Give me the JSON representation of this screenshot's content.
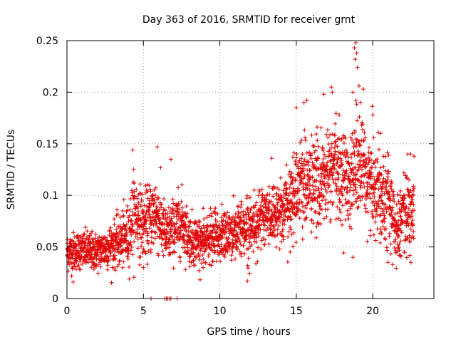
{
  "chart_data": {
    "type": "scatter",
    "title": "Day 363 of 2016, SRMTID for receiver grnt",
    "xlabel": "GPS time / hours",
    "ylabel": "SRMTID / TECUs",
    "xlim": [
      0,
      24
    ],
    "ylim": [
      0,
      0.25
    ],
    "x_ticks": [
      0,
      5,
      10,
      15,
      20
    ],
    "x_tick_labels": [
      "0",
      "5",
      "10",
      "15",
      "20"
    ],
    "y_ticks": [
      0,
      0.05,
      0.1,
      0.15,
      0.2,
      0.25
    ],
    "y_tick_labels": [
      "0",
      "0.05",
      "0.1",
      "0.15",
      "0.2",
      "0.25"
    ],
    "grid": true,
    "marker": "+",
    "color": "#e00000",
    "series": [
      {
        "name": "SRMTID",
        "sampling": "every 30 s from 0.0 to 22.7 h",
        "trend_envelope": [
          {
            "x": 0.0,
            "y": 0.045,
            "spread": 0.012
          },
          {
            "x": 1.0,
            "y": 0.047,
            "spread": 0.012
          },
          {
            "x": 2.0,
            "y": 0.045,
            "spread": 0.012
          },
          {
            "x": 3.0,
            "y": 0.052,
            "spread": 0.014
          },
          {
            "x": 4.0,
            "y": 0.06,
            "spread": 0.02
          },
          {
            "x": 4.4,
            "y": 0.085,
            "spread": 0.025
          },
          {
            "x": 5.0,
            "y": 0.07,
            "spread": 0.02
          },
          {
            "x": 5.8,
            "y": 0.085,
            "spread": 0.025
          },
          {
            "x": 6.5,
            "y": 0.06,
            "spread": 0.018
          },
          {
            "x": 7.5,
            "y": 0.075,
            "spread": 0.02
          },
          {
            "x": 8.0,
            "y": 0.058,
            "spread": 0.016
          },
          {
            "x": 9.0,
            "y": 0.055,
            "spread": 0.016
          },
          {
            "x": 10.0,
            "y": 0.06,
            "spread": 0.016
          },
          {
            "x": 11.0,
            "y": 0.065,
            "spread": 0.017
          },
          {
            "x": 12.0,
            "y": 0.07,
            "spread": 0.018
          },
          {
            "x": 13.0,
            "y": 0.08,
            "spread": 0.02
          },
          {
            "x": 14.0,
            "y": 0.085,
            "spread": 0.02
          },
          {
            "x": 14.8,
            "y": 0.095,
            "spread": 0.025
          },
          {
            "x": 15.2,
            "y": 0.115,
            "spread": 0.03
          },
          {
            "x": 16.5,
            "y": 0.11,
            "spread": 0.03
          },
          {
            "x": 17.5,
            "y": 0.125,
            "spread": 0.03
          },
          {
            "x": 18.5,
            "y": 0.115,
            "spread": 0.03
          },
          {
            "x": 19.0,
            "y": 0.13,
            "spread": 0.035
          },
          {
            "x": 20.0,
            "y": 0.11,
            "spread": 0.03
          },
          {
            "x": 21.0,
            "y": 0.1,
            "spread": 0.028
          },
          {
            "x": 21.5,
            "y": 0.065,
            "spread": 0.018
          },
          {
            "x": 22.0,
            "y": 0.085,
            "spread": 0.025
          },
          {
            "x": 22.7,
            "y": 0.08,
            "spread": 0.022
          }
        ],
        "peaks": [
          {
            "x": 18.8,
            "y": 0.243
          },
          {
            "x": 18.9,
            "y": 0.248
          },
          {
            "x": 18.95,
            "y": 0.238
          },
          {
            "x": 18.85,
            "y": 0.232
          },
          {
            "x": 19.0,
            "y": 0.224
          },
          {
            "x": 18.7,
            "y": 0.2
          },
          {
            "x": 19.1,
            "y": 0.206
          },
          {
            "x": 17.3,
            "y": 0.205
          },
          {
            "x": 17.35,
            "y": 0.2
          },
          {
            "x": 16.8,
            "y": 0.198
          },
          {
            "x": 15.5,
            "y": 0.19
          },
          {
            "x": 15.0,
            "y": 0.185
          },
          {
            "x": 19.2,
            "y": 0.19
          },
          {
            "x": 18.9,
            "y": 0.192
          },
          {
            "x": 20.0,
            "y": 0.178
          },
          {
            "x": 4.3,
            "y": 0.144
          },
          {
            "x": 5.9,
            "y": 0.147
          },
          {
            "x": 6.8,
            "y": 0.135
          },
          {
            "x": 22.3,
            "y": 0.14
          },
          {
            "x": 22.7,
            "y": 0.138
          },
          {
            "x": 20.5,
            "y": 0.16
          },
          {
            "x": 13.4,
            "y": 0.136
          }
        ],
        "outliers_low": [
          {
            "x": 0.4,
            "y": 0.016
          },
          {
            "x": 5.0,
            "y": 0.03
          },
          {
            "x": 8.9,
            "y": 0.03
          },
          {
            "x": 11.8,
            "y": 0.017
          },
          {
            "x": 14.6,
            "y": 0.045
          },
          {
            "x": 18.7,
            "y": 0.04
          },
          {
            "x": 21.3,
            "y": 0.033
          },
          {
            "x": 21.0,
            "y": 0.035
          },
          {
            "x": 22.5,
            "y": 0.035
          }
        ],
        "zero_points": [
          5.5,
          6.4,
          6.5,
          6.6,
          6.7,
          6.8,
          7.2
        ]
      }
    ]
  }
}
